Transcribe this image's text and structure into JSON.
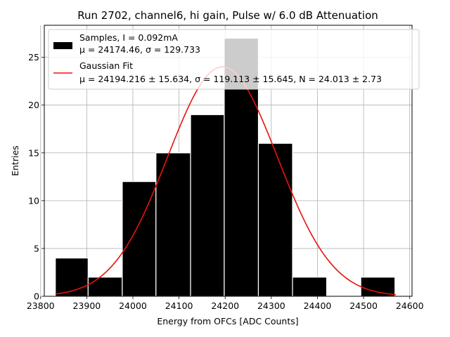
{
  "chart_data": {
    "type": "bar",
    "title": "Run 2702, channel6, hi gain, Pulse w/ 6.0 dB Attenuation",
    "xlabel": "Energy from OFCs [ADC Counts]",
    "ylabel": "Entries",
    "xlim": [
      23808,
      24605
    ],
    "ylim": [
      0,
      28.35
    ],
    "x_ticks": [
      23800,
      23900,
      24000,
      24100,
      24200,
      24300,
      24400,
      24500,
      24600
    ],
    "y_ticks": [
      0,
      5,
      10,
      15,
      20,
      25
    ],
    "grid": true,
    "legend_position": "top-left",
    "bins": [
      {
        "x0": 23832,
        "x1": 23903,
        "value": 4
      },
      {
        "x0": 23903,
        "x1": 23977,
        "value": 2
      },
      {
        "x0": 23977,
        "x1": 24050,
        "value": 12
      },
      {
        "x0": 24050,
        "x1": 24125,
        "value": 15
      },
      {
        "x0": 24125,
        "x1": 24198,
        "value": 19
      },
      {
        "x0": 24198,
        "x1": 24272,
        "value": 27
      },
      {
        "x0": 24272,
        "x1": 24346,
        "value": 16
      },
      {
        "x0": 24346,
        "x1": 24420,
        "value": 2
      },
      {
        "x0": 24420,
        "x1": 24494,
        "value": 0
      },
      {
        "x0": 24494,
        "x1": 24568,
        "value": 2
      }
    ],
    "fit": {
      "type": "gaussian",
      "mu": 24194.216,
      "sigma": 119.113,
      "peak": 24.0,
      "x_range": [
        23832,
        24570
      ]
    },
    "legend": [
      {
        "kind": "patch",
        "color": "#000000",
        "line1": "Samples, I = 0.092mA",
        "line2": "μ = 24174.46, σ = 129.733"
      },
      {
        "kind": "line",
        "color": "#e8120c",
        "line1": "Gaussian Fit",
        "line2": "μ = 24194.216 ± 15.634, σ = 119.113 ± 15.645, N = 24.013 ± 2.73"
      }
    ],
    "colors": {
      "bar_fill": "#000000",
      "bar_edge": "#ffffff",
      "fit_line": "#e8120c",
      "grid": "#b0b0b0"
    }
  }
}
